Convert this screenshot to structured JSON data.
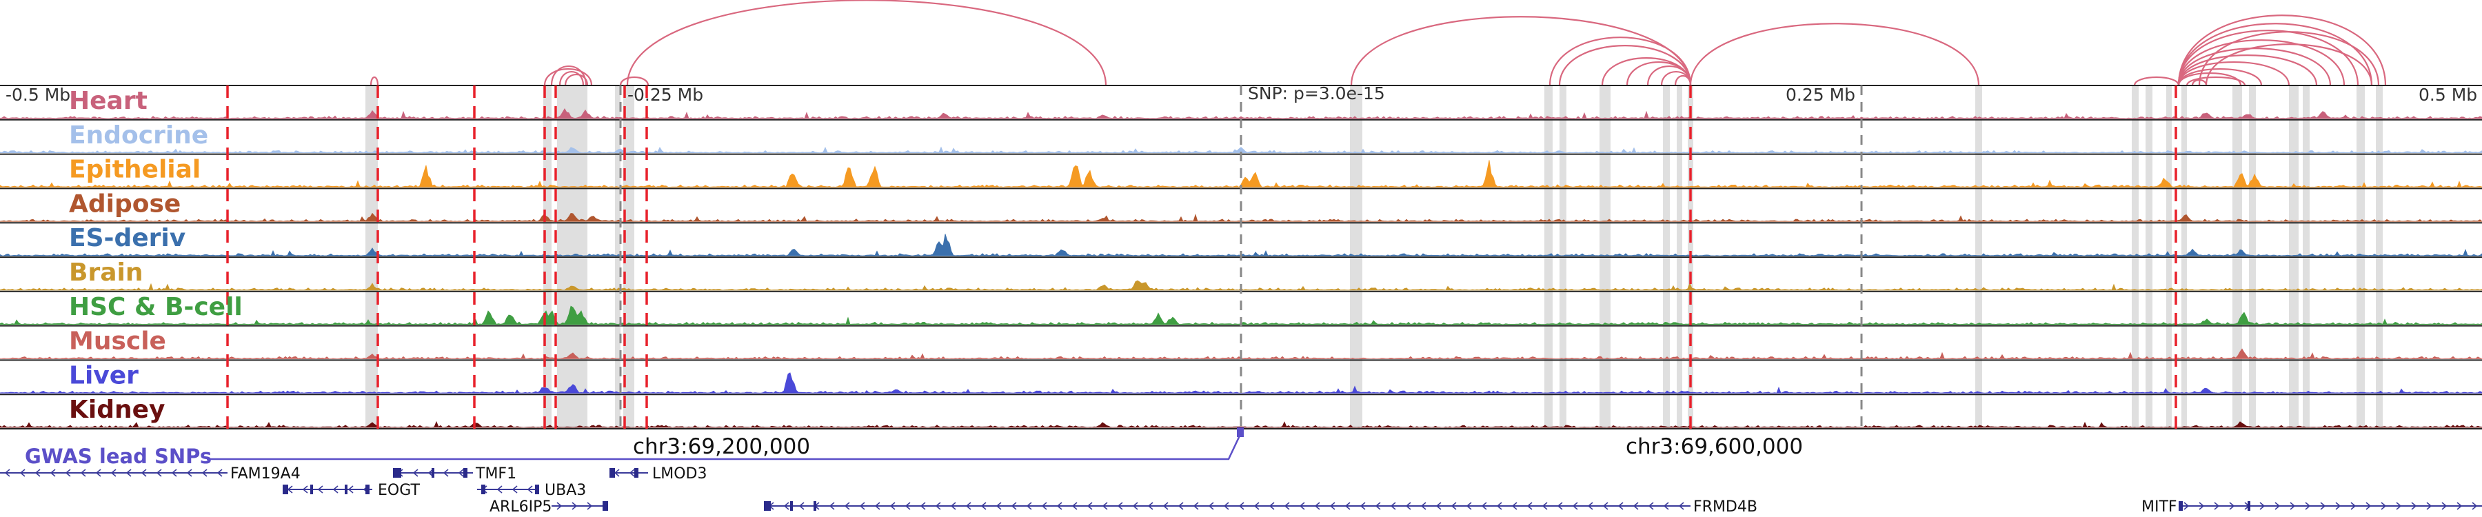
{
  "positions": {
    "left": "-0.5 Mb",
    "mid_left": "-0.25 Mb",
    "snp": "SNP: p=3.0e-15",
    "mid_right": "0.25 Mb",
    "right": "0.5 Mb"
  },
  "coords": [
    "chr3:69,200,000",
    "chr3:69,600,000"
  ],
  "gwas_label": "GWAS lead SNPs",
  "tracks": [
    {
      "name": "Heart",
      "color": "#c8617b"
    },
    {
      "name": "Endocrine",
      "color": "#a4c0ea"
    },
    {
      "name": "Epithelial",
      "color": "#f59a22"
    },
    {
      "name": "Adipose",
      "color": "#b0562f"
    },
    {
      "name": "ES-deriv",
      "color": "#3b70ad"
    },
    {
      "name": "Brain",
      "color": "#c9972c"
    },
    {
      "name": "HSC & B-cell",
      "color": "#3f9e42"
    },
    {
      "name": "Muscle",
      "color": "#c8605a"
    },
    {
      "name": "Liver",
      "color": "#4a49d8"
    },
    {
      "name": "Kidney",
      "color": "#6a0f0f"
    }
  ],
  "genes": [
    {
      "name": "FAM19A4",
      "strand": "-"
    },
    {
      "name": "EOGT",
      "strand": "-"
    },
    {
      "name": "TMF1",
      "strand": "-"
    },
    {
      "name": "UBA3",
      "strand": "-"
    },
    {
      "name": "LMOD3",
      "strand": "-"
    },
    {
      "name": "ARL6IP5",
      "strand": "+"
    },
    {
      "name": "FRMD4B",
      "strand": "-"
    },
    {
      "name": "MITF",
      "strand": "+"
    }
  ],
  "colors": {
    "arc": "#d9687f",
    "red_line": "#e8212b",
    "gray_highlight": "#d9d9d9",
    "gwas": "#5b4fc8"
  }
}
